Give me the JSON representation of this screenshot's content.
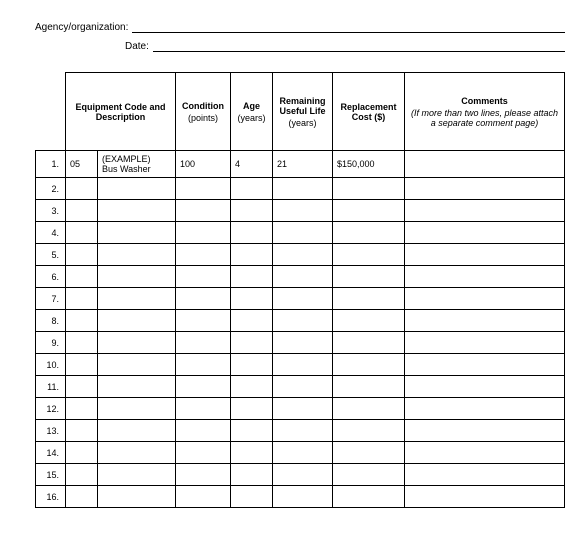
{
  "header": {
    "agency_label": "Agency/organization:",
    "date_label": "Date:"
  },
  "columns": {
    "equipment": {
      "title": "Equipment Code and Description"
    },
    "condition": {
      "title": "Condition",
      "sub": "(points)"
    },
    "age": {
      "title": "Age",
      "sub": "(years)"
    },
    "life": {
      "title": "Remaining Useful Life",
      "sub": "(years)"
    },
    "cost": {
      "title": "Replacement Cost ($)"
    },
    "comments": {
      "title": "Comments",
      "sub": "(If more than two lines, please attach a separate comment page)"
    }
  },
  "rows": [
    {
      "n": "1.",
      "code": "05",
      "desc_top": "(EXAMPLE)",
      "desc": "Bus Washer",
      "cond": "100",
      "age": "4",
      "life": "21",
      "cost": "$150,000",
      "comm": ""
    },
    {
      "n": "2.",
      "code": "",
      "desc_top": "",
      "desc": "",
      "cond": "",
      "age": "",
      "life": "",
      "cost": "",
      "comm": ""
    },
    {
      "n": "3.",
      "code": "",
      "desc_top": "",
      "desc": "",
      "cond": "",
      "age": "",
      "life": "",
      "cost": "",
      "comm": ""
    },
    {
      "n": "4.",
      "code": "",
      "desc_top": "",
      "desc": "",
      "cond": "",
      "age": "",
      "life": "",
      "cost": "",
      "comm": ""
    },
    {
      "n": "5.",
      "code": "",
      "desc_top": "",
      "desc": "",
      "cond": "",
      "age": "",
      "life": "",
      "cost": "",
      "comm": ""
    },
    {
      "n": "6.",
      "code": "",
      "desc_top": "",
      "desc": "",
      "cond": "",
      "age": "",
      "life": "",
      "cost": "",
      "comm": ""
    },
    {
      "n": "7.",
      "code": "",
      "desc_top": "",
      "desc": "",
      "cond": "",
      "age": "",
      "life": "",
      "cost": "",
      "comm": ""
    },
    {
      "n": "8.",
      "code": "",
      "desc_top": "",
      "desc": "",
      "cond": "",
      "age": "",
      "life": "",
      "cost": "",
      "comm": ""
    },
    {
      "n": "9.",
      "code": "",
      "desc_top": "",
      "desc": "",
      "cond": "",
      "age": "",
      "life": "",
      "cost": "",
      "comm": ""
    },
    {
      "n": "10.",
      "code": "",
      "desc_top": "",
      "desc": "",
      "cond": "",
      "age": "",
      "life": "",
      "cost": "",
      "comm": ""
    },
    {
      "n": "11.",
      "code": "",
      "desc_top": "",
      "desc": "",
      "cond": "",
      "age": "",
      "life": "",
      "cost": "",
      "comm": ""
    },
    {
      "n": "12.",
      "code": "",
      "desc_top": "",
      "desc": "",
      "cond": "",
      "age": "",
      "life": "",
      "cost": "",
      "comm": ""
    },
    {
      "n": "13.",
      "code": "",
      "desc_top": "",
      "desc": "",
      "cond": "",
      "age": "",
      "life": "",
      "cost": "",
      "comm": ""
    },
    {
      "n": "14.",
      "code": "",
      "desc_top": "",
      "desc": "",
      "cond": "",
      "age": "",
      "life": "",
      "cost": "",
      "comm": ""
    },
    {
      "n": "15.",
      "code": "",
      "desc_top": "",
      "desc": "",
      "cond": "",
      "age": "",
      "life": "",
      "cost": "",
      "comm": ""
    },
    {
      "n": "16.",
      "code": "",
      "desc_top": "",
      "desc": "",
      "cond": "",
      "age": "",
      "life": "",
      "cost": "",
      "comm": ""
    }
  ]
}
